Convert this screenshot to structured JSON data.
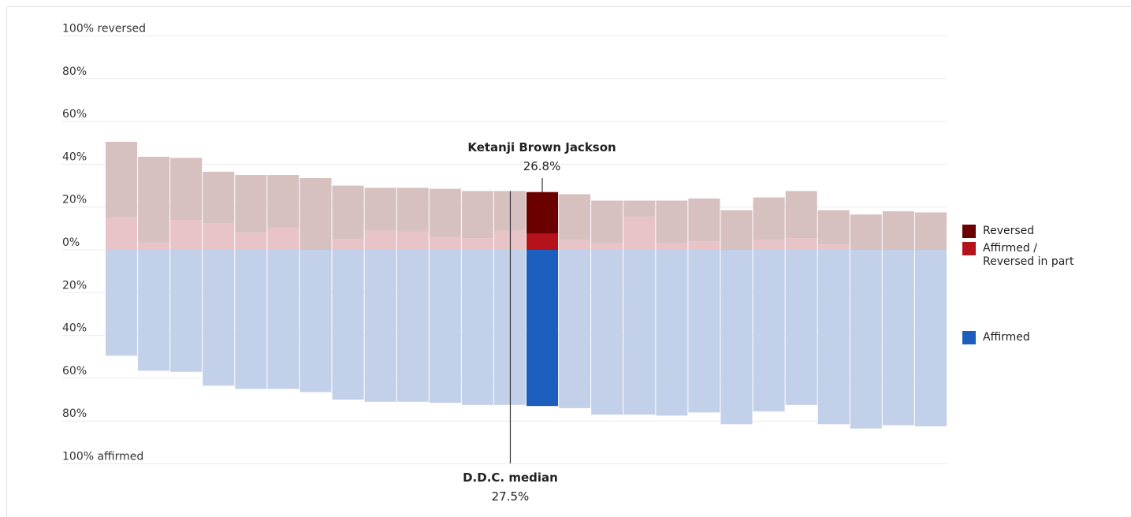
{
  "chart_data": {
    "type": "bar",
    "stacked": true,
    "ylim": [
      -100,
      100
    ],
    "y_ticks": [
      {
        "value": 100,
        "label": "100% reversed"
      },
      {
        "value": 80,
        "label": "80%"
      },
      {
        "value": 60,
        "label": "60%"
      },
      {
        "value": 40,
        "label": "40%"
      },
      {
        "value": 20,
        "label": "20%"
      },
      {
        "value": 0,
        "label": "0%"
      },
      {
        "value": -20,
        "label": "20%"
      },
      {
        "value": -40,
        "label": "40%"
      },
      {
        "value": -60,
        "label": "60%"
      },
      {
        "value": -80,
        "label": "80%"
      },
      {
        "value": -100,
        "label": "100% affirmed"
      }
    ],
    "series": [
      {
        "name": "Reversed",
        "color": "#6b0000",
        "faded_color": "#d7c0c0",
        "values": [
          35.5,
          40,
          29,
          24,
          27,
          24.5,
          33.5,
          25,
          20,
          20.5,
          22.5,
          22,
          18.5,
          19.5,
          21.5,
          20,
          7.5,
          20,
          20,
          18.5,
          20,
          22,
          16,
          16.5,
          18,
          17.5
        ]
      },
      {
        "name": "Affirmed / Reversed in part",
        "color": "#b5121b",
        "faded_color": "#e8c3c7",
        "values": [
          15,
          3.5,
          14,
          12.5,
          8,
          10.5,
          0,
          5,
          9,
          8.5,
          6,
          5.5,
          9,
          7.5,
          4.5,
          3,
          15.5,
          3,
          4,
          0,
          4.5,
          5.5,
          2.5,
          0,
          0,
          0
        ]
      },
      {
        "name": "Affirmed",
        "color": "#1b5ebe",
        "faded_color": "#c3d0e9",
        "values": [
          49.5,
          56.5,
          57,
          63.5,
          65,
          65,
          66.5,
          70,
          71,
          71,
          71.5,
          72.5,
          72.5,
          73,
          74,
          77,
          77,
          77.5,
          76,
          81.5,
          75.5,
          72.5,
          81.5,
          83.5,
          82,
          82.5
        ],
        "negative": true
      }
    ],
    "highlight": {
      "index": 13,
      "label": "Ketanji Brown Jackson",
      "value_label": "26.8%"
    },
    "median": {
      "position": 12.5,
      "label": "D.D.C. median",
      "value_label": "27.5%",
      "value": 27.5
    },
    "legend": [
      {
        "label_lines": [
          "Reversed"
        ],
        "color": "#6b0000",
        "anchor": 0
      },
      {
        "label_lines": [
          "Affirmed /",
          "Reversed in part"
        ],
        "color": "#b5121b",
        "anchor": 0
      },
      {
        "label_lines": [
          "Affirmed"
        ],
        "color": "#1b5ebe",
        "anchor": -40
      }
    ],
    "grid": true
  }
}
